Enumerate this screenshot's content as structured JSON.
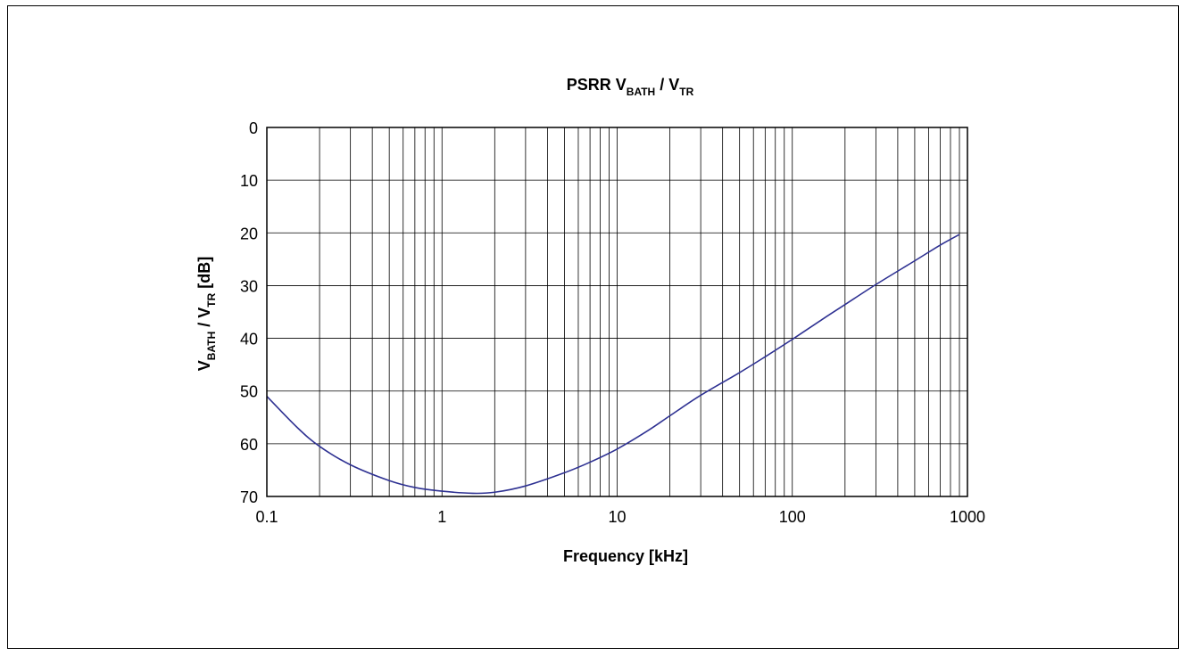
{
  "chart_data": {
    "type": "line",
    "title": {
      "prefix": "PSRR V",
      "sub1": "BATH",
      "mid": " / V",
      "sub2": "TR"
    },
    "xlabel": "Frequency [kHz]",
    "ylabel": {
      "prefix": "V",
      "sub1": "BATH",
      "mid": " / V",
      "sub2": "TR",
      "suffix": " [dB]"
    },
    "x_scale": "log",
    "xlim": [
      0.1,
      1000
    ],
    "ylim": [
      0,
      70
    ],
    "y_inverted": true,
    "x_ticks": [
      0.1,
      1,
      10,
      100,
      1000
    ],
    "x_tick_labels": [
      "0.1",
      "1",
      "10",
      "100",
      "1000"
    ],
    "y_ticks": [
      0,
      10,
      20,
      30,
      40,
      50,
      60,
      70
    ],
    "y_tick_labels": [
      "0",
      "10",
      "20",
      "30",
      "40",
      "50",
      "60",
      "70"
    ],
    "grid": true,
    "line_color": "#2e3192",
    "series": [
      {
        "x": [
          0.1,
          0.15,
          0.2,
          0.3,
          0.5,
          0.7,
          1.0,
          1.5,
          2.0,
          3.0,
          5.0,
          7.0,
          10,
          15,
          20,
          30,
          50,
          70,
          100,
          150,
          200,
          300,
          500,
          700,
          900
        ],
        "y": [
          51,
          57,
          60.5,
          64,
          67,
          68.3,
          69,
          69.4,
          69.2,
          68,
          65.5,
          63.5,
          61,
          57.5,
          54.7,
          50.8,
          46.5,
          43.5,
          40.2,
          36.3,
          33.6,
          29.8,
          25.3,
          22.3,
          20.3
        ]
      }
    ]
  }
}
